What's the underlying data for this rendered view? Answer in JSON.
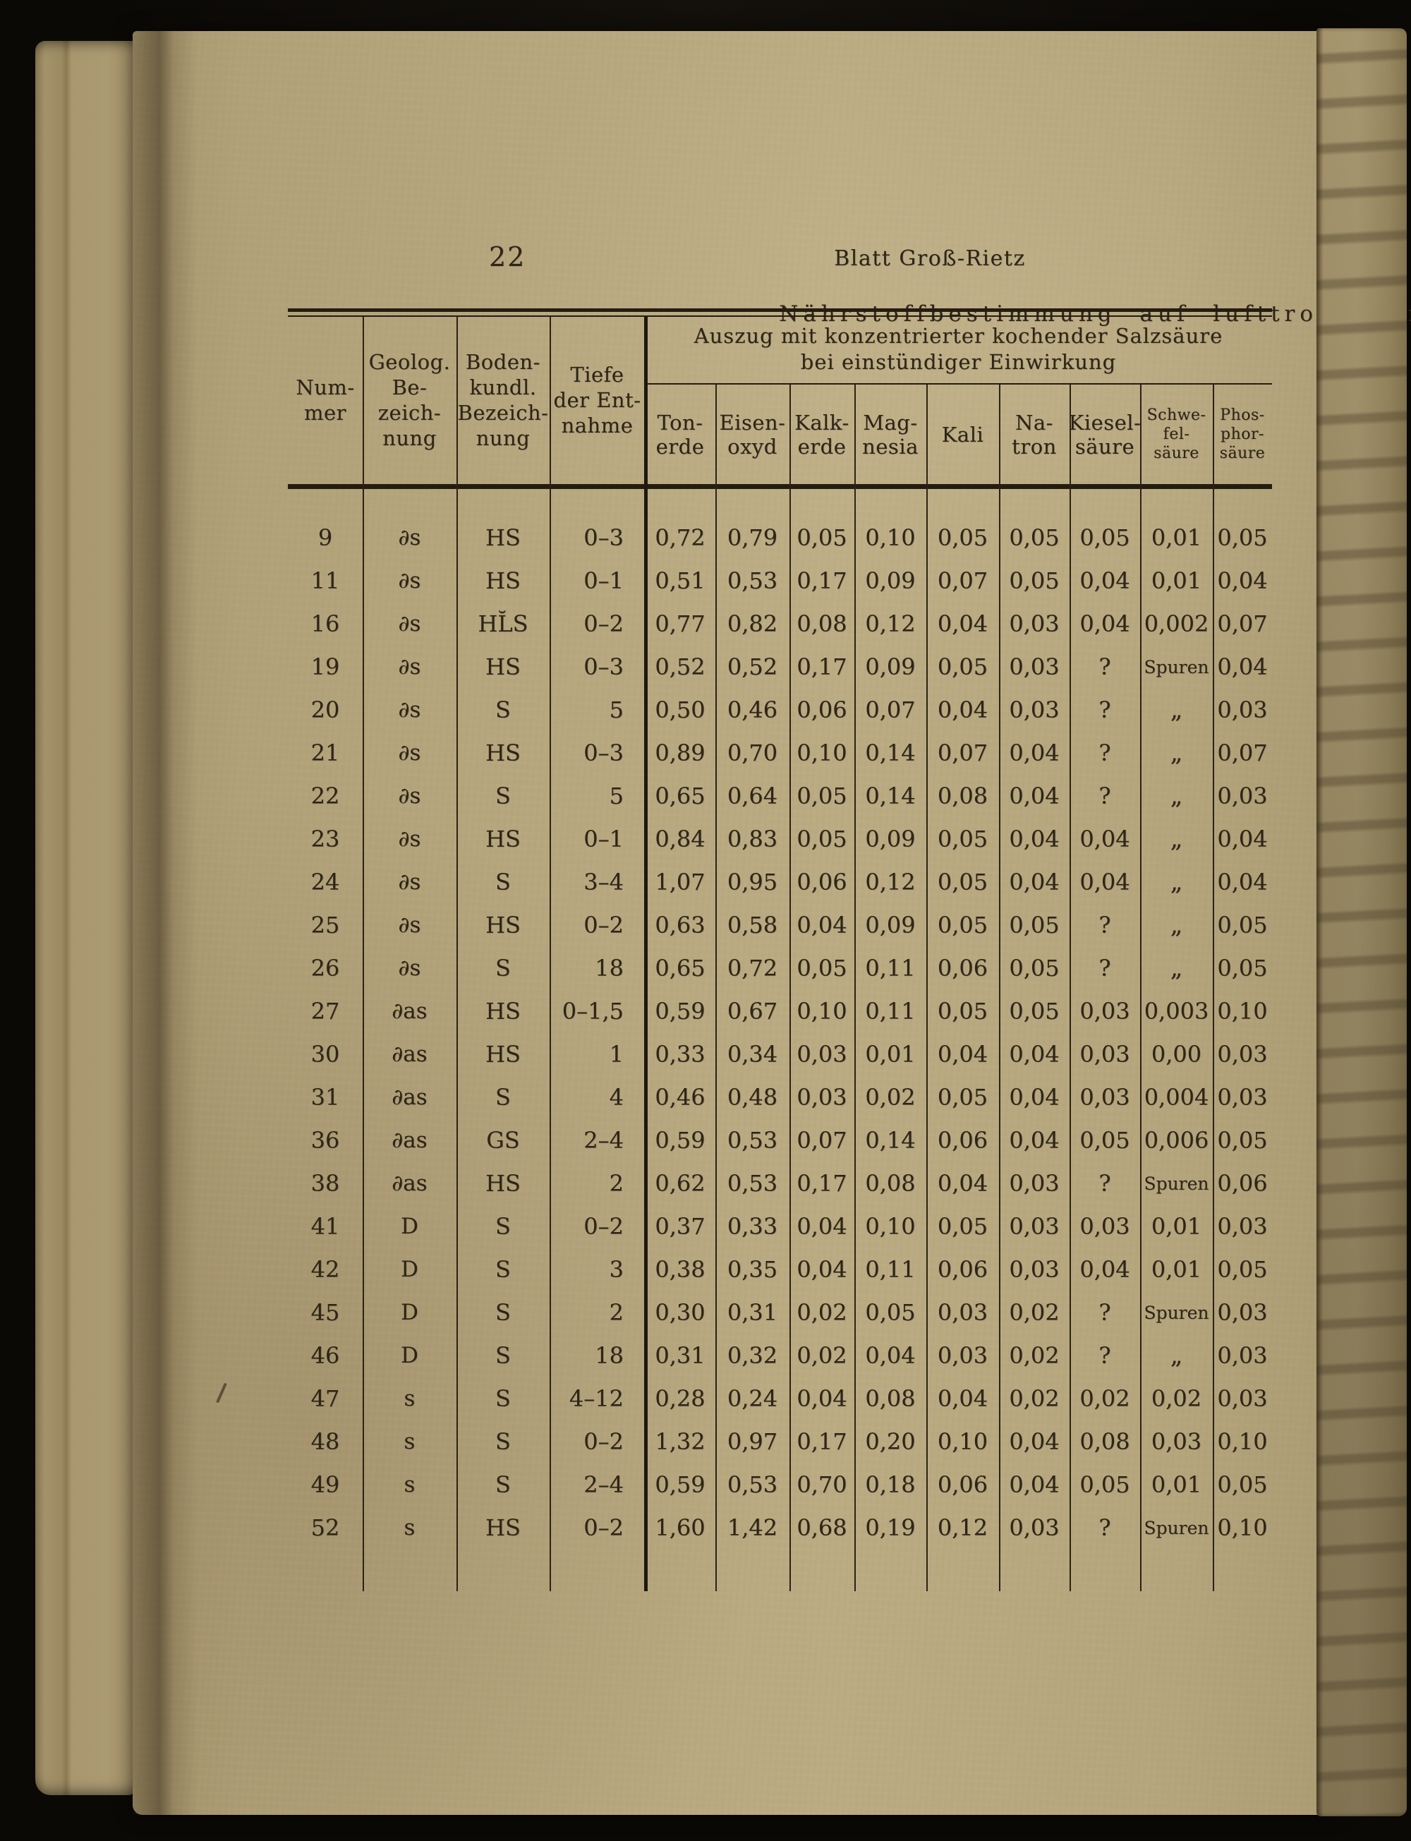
{
  "page": {
    "number": "22",
    "running_header": "Blatt Groß-Rietz",
    "section_title": "Nährstoffbestimmung auf lufttrockenen"
  },
  "colors": {
    "paper": "#b6a67e",
    "paper_edge": "#a3926a",
    "gutter_shadow": "#6f5f41",
    "ink": "#2d2517",
    "scan_background": "#0b0906"
  },
  "table": {
    "group_header_lines": [
      "Auszug mit konzentrierter kochender Salzsäure",
      "bei einstündiger Einwirkung"
    ],
    "columns": [
      {
        "name": "Nummer",
        "label_lines": [
          "Num-",
          "mer"
        ]
      },
      {
        "name": "Geologische Bezeichnung",
        "label_lines": [
          "Geolog.",
          "Be-",
          "zeich-",
          "nung"
        ]
      },
      {
        "name": "Bodenkundliche Bezeichnung",
        "label_lines": [
          "Boden-",
          "kundl.",
          "Bezeich-",
          "nung"
        ]
      },
      {
        "name": "Tiefe der Entnahme",
        "label_lines": [
          "Tiefe",
          "der Ent-",
          "nahme"
        ]
      },
      {
        "name": "Tonerde",
        "label_lines": [
          "Ton-",
          "erde"
        ]
      },
      {
        "name": "Eisenoxyd",
        "label_lines": [
          "Eisen-",
          "oxyd"
        ]
      },
      {
        "name": "Kalkerde",
        "label_lines": [
          "Kalk-",
          "erde"
        ]
      },
      {
        "name": "Magnesia",
        "label_lines": [
          "Mag-",
          "nesia"
        ]
      },
      {
        "name": "Kali",
        "label_lines": [
          "Kali"
        ]
      },
      {
        "name": "Natron",
        "label_lines": [
          "Na-",
          "tron"
        ]
      },
      {
        "name": "Kieselsäure",
        "label_lines": [
          "Kiesel-",
          "säure"
        ]
      },
      {
        "name": "Schwefelsäure",
        "label_lines": [
          "Schwe-",
          "fel-",
          "säure"
        ]
      },
      {
        "name": "Phosphorsäure",
        "label_lines": [
          "Phos-",
          "phor-",
          "säure"
        ]
      }
    ],
    "rows": [
      [
        "9",
        "∂s",
        "HS",
        "0–3",
        "0,72",
        "0,79",
        "0,05",
        "0,10",
        "0,05",
        "0,05",
        "0,05",
        "0,01",
        "0,05"
      ],
      [
        "11",
        "∂s",
        "HS",
        "0–1",
        "0,51",
        "0,53",
        "0,17",
        "0,09",
        "0,07",
        "0,05",
        "0,04",
        "0,01",
        "0,04"
      ],
      [
        "16",
        "∂s",
        "HL̆S",
        "0–2",
        "0,77",
        "0,82",
        "0,08",
        "0,12",
        "0,04",
        "0,03",
        "0,04",
        "0,002",
        "0,07"
      ],
      [
        "19",
        "∂s",
        "HS",
        "0–3",
        "0,52",
        "0,52",
        "0,17",
        "0,09",
        "0,05",
        "0,03",
        "?",
        "Spuren",
        "0,04"
      ],
      [
        "20",
        "∂s",
        "S",
        "5",
        "0,50",
        "0,46",
        "0,06",
        "0,07",
        "0,04",
        "0,03",
        "?",
        "„",
        "0,03"
      ],
      [
        "21",
        "∂s",
        "HS",
        "0–3",
        "0,89",
        "0,70",
        "0,10",
        "0,14",
        "0,07",
        "0,04",
        "?",
        "„",
        "0,07"
      ],
      [
        "22",
        "∂s",
        "S",
        "5",
        "0,65",
        "0,64",
        "0,05",
        "0,14",
        "0,08",
        "0,04",
        "?",
        "„",
        "0,03"
      ],
      [
        "23",
        "∂s",
        "HS",
        "0–1",
        "0,84",
        "0,83",
        "0,05",
        "0,09",
        "0,05",
        "0,04",
        "0,04",
        "„",
        "0,04"
      ],
      [
        "24",
        "∂s",
        "S",
        "3–4",
        "1,07",
        "0,95",
        "0,06",
        "0,12",
        "0,05",
        "0,04",
        "0,04",
        "„",
        "0,04"
      ],
      [
        "25",
        "∂s",
        "HS",
        "0–2",
        "0,63",
        "0,58",
        "0,04",
        "0,09",
        "0,05",
        "0,05",
        "?",
        "„",
        "0,05"
      ],
      [
        "26",
        "∂s",
        "S",
        "18",
        "0,65",
        "0,72",
        "0,05",
        "0,11",
        "0,06",
        "0,05",
        "?",
        "„",
        "0,05"
      ],
      [
        "27",
        "∂as",
        "HS",
        "0–1,5",
        "0,59",
        "0,67",
        "0,10",
        "0,11",
        "0,05",
        "0,05",
        "0,03",
        "0,003",
        "0,10"
      ],
      [
        "30",
        "∂as",
        "HS",
        "1",
        "0,33",
        "0,34",
        "0,03",
        "0,01",
        "0,04",
        "0,04",
        "0,03",
        "0,00",
        "0,03"
      ],
      [
        "31",
        "∂as",
        "S",
        "4",
        "0,46",
        "0,48",
        "0,03",
        "0,02",
        "0,05",
        "0,04",
        "0,03",
        "0,004",
        "0,03"
      ],
      [
        "36",
        "∂as",
        "GS",
        "2–4",
        "0,59",
        "0,53",
        "0,07",
        "0,14",
        "0,06",
        "0,04",
        "0,05",
        "0,006",
        "0,05"
      ],
      [
        "38",
        "∂as",
        "HS",
        "2",
        "0,62",
        "0,53",
        "0,17",
        "0,08",
        "0,04",
        "0,03",
        "?",
        "Spuren",
        "0,06"
      ],
      [
        "41",
        "D",
        "S",
        "0–2",
        "0,37",
        "0,33",
        "0,04",
        "0,10",
        "0,05",
        "0,03",
        "0,03",
        "0,01",
        "0,03"
      ],
      [
        "42",
        "D",
        "S",
        "3",
        "0,38",
        "0,35",
        "0,04",
        "0,11",
        "0,06",
        "0,03",
        "0,04",
        "0,01",
        "0,05"
      ],
      [
        "45",
        "D",
        "S",
        "2",
        "0,30",
        "0,31",
        "0,02",
        "0,05",
        "0,03",
        "0,02",
        "?",
        "Spuren",
        "0,03"
      ],
      [
        "46",
        "D",
        "S",
        "18",
        "0,31",
        "0,32",
        "0,02",
        "0,04",
        "0,03",
        "0,02",
        "?",
        "„",
        "0,03"
      ],
      [
        "47",
        "s",
        "S",
        "4–12",
        "0,28",
        "0,24",
        "0,04",
        "0,08",
        "0,04",
        "0,02",
        "0,02",
        "0,02",
        "0,03"
      ],
      [
        "48",
        "s",
        "S",
        "0–2",
        "1,32",
        "0,97",
        "0,17",
        "0,20",
        "0,10",
        "0,04",
        "0,08",
        "0,03",
        "0,10"
      ],
      [
        "49",
        "s",
        "S",
        "2–4",
        "0,59",
        "0,53",
        "0,70",
        "0,18",
        "0,06",
        "0,04",
        "0,05",
        "0,01",
        "0,05"
      ],
      [
        "52",
        "s",
        "HS",
        "0–2",
        "1,60",
        "1,42",
        "0,68",
        "0,19",
        "0,12",
        "0,03",
        "?",
        "Spuren",
        "0,10"
      ]
    ]
  }
}
